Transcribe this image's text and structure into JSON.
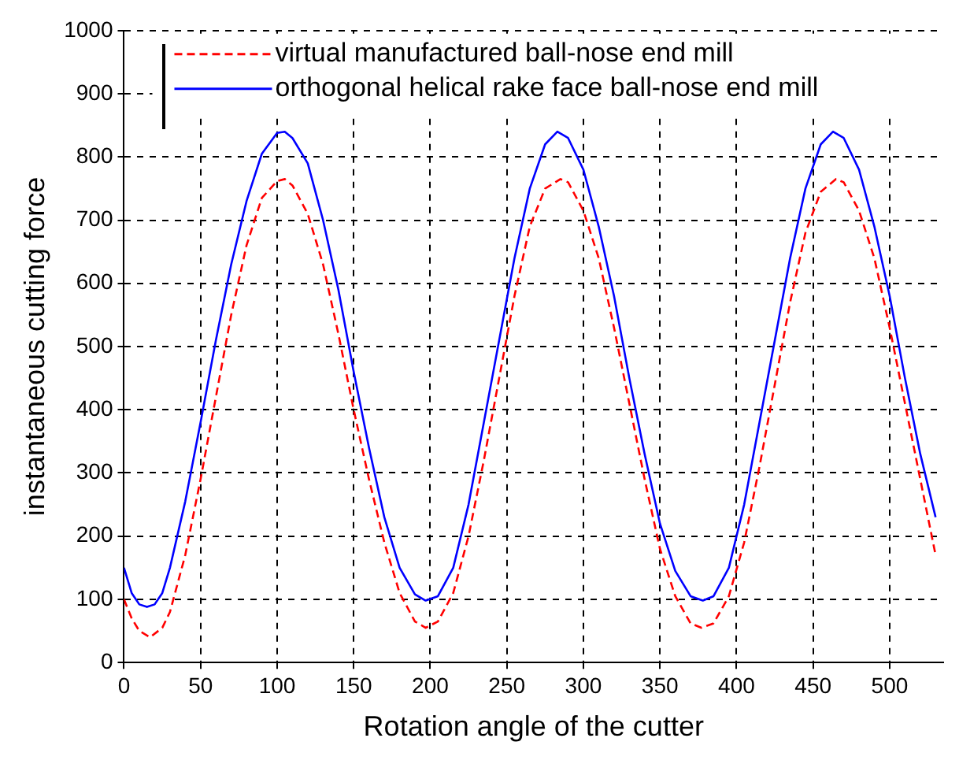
{
  "chart_data": {
    "type": "line",
    "xlabel": "Rotation angle of the cutter",
    "ylabel": "instantaneous cutting force",
    "xlim": [
      0,
      535
    ],
    "xticks": [
      0,
      50,
      100,
      150,
      200,
      250,
      300,
      350,
      400,
      450,
      500
    ],
    "ylim": [
      0,
      1000
    ],
    "yticks": [
      0,
      100,
      200,
      300,
      400,
      500,
      600,
      700,
      800,
      900,
      1000
    ],
    "grid": true,
    "legend": "top",
    "marker": "none",
    "series": [
      {
        "name": "virtual manufactured ball-nose end mill",
        "color": "#ff0000",
        "line_style": "dashed",
        "x": [
          0,
          5,
          10,
          17,
          25,
          30,
          40,
          50,
          60,
          70,
          80,
          90,
          100,
          105,
          110,
          120,
          130,
          140,
          150,
          160,
          170,
          180,
          190,
          197,
          205,
          215,
          225,
          235,
          245,
          255,
          265,
          275,
          285,
          290,
          300,
          310,
          320,
          330,
          340,
          350,
          360,
          370,
          377,
          385,
          395,
          405,
          415,
          425,
          435,
          445,
          455,
          465,
          470,
          480,
          490,
          500,
          510,
          520,
          530
        ],
        "values": [
          100,
          70,
          50,
          40,
          55,
          80,
          170,
          290,
          420,
          550,
          660,
          735,
          762,
          765,
          755,
          710,
          630,
          520,
          400,
          290,
          190,
          110,
          65,
          55,
          65,
          110,
          200,
          320,
          450,
          580,
          690,
          750,
          765,
          760,
          715,
          640,
          530,
          410,
          290,
          180,
          105,
          62,
          55,
          62,
          105,
          190,
          310,
          440,
          570,
          680,
          745,
          765,
          760,
          715,
          640,
          530,
          410,
          290,
          170
        ]
      },
      {
        "name": "orthogonal helical rake face ball-nose end mill",
        "color": "#0000ff",
        "line_style": "solid",
        "x": [
          0,
          5,
          10,
          15,
          20,
          25,
          30,
          40,
          50,
          60,
          70,
          80,
          90,
          100,
          105,
          110,
          120,
          130,
          140,
          150,
          160,
          170,
          180,
          190,
          197,
          205,
          215,
          225,
          235,
          245,
          255,
          265,
          275,
          283,
          290,
          300,
          310,
          320,
          330,
          340,
          350,
          360,
          370,
          378,
          385,
          395,
          405,
          415,
          425,
          435,
          445,
          455,
          463,
          470,
          480,
          490,
          500,
          510,
          520,
          530
        ],
        "values": [
          150,
          110,
          92,
          88,
          92,
          110,
          150,
          255,
          380,
          510,
          630,
          730,
          805,
          838,
          840,
          830,
          790,
          700,
          590,
          460,
          340,
          230,
          150,
          108,
          98,
          105,
          150,
          250,
          380,
          510,
          640,
          750,
          820,
          840,
          830,
          780,
          690,
          580,
          450,
          330,
          220,
          145,
          105,
          98,
          105,
          150,
          250,
          380,
          510,
          640,
          750,
          820,
          840,
          830,
          780,
          690,
          580,
          450,
          330,
          230
        ]
      }
    ]
  }
}
